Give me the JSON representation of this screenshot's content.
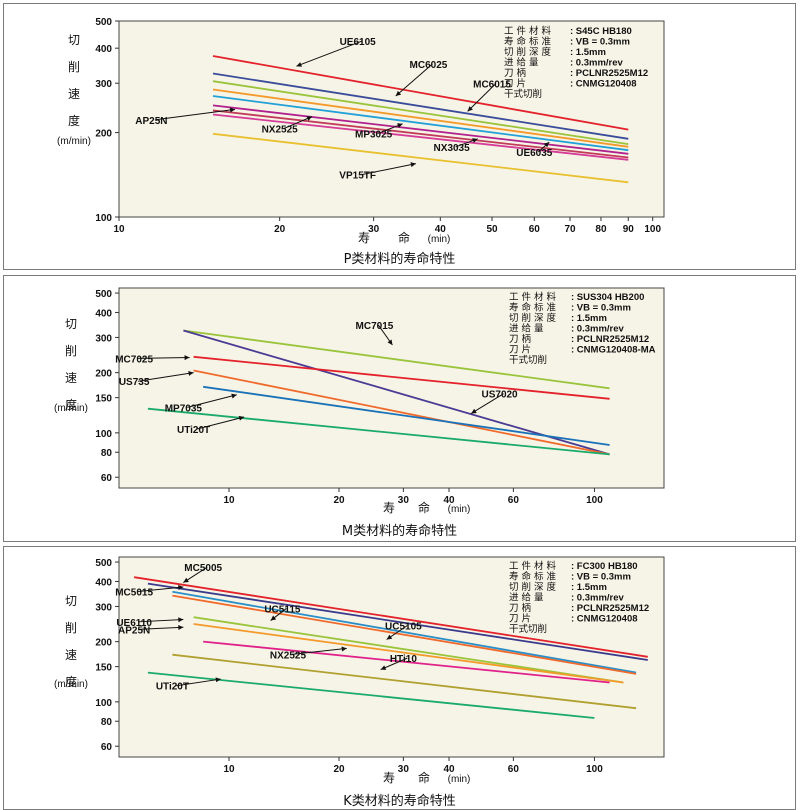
{
  "chart_data": [
    {
      "type": "line",
      "title": "P类材料的寿命特性",
      "xscale": "log",
      "yscale": "log",
      "xlim": [
        10,
        105
      ],
      "ylim": [
        100,
        500
      ],
      "xticks": [
        10,
        20,
        30,
        40,
        50,
        60,
        70,
        80,
        90,
        100
      ],
      "yticks": [
        100,
        200,
        300,
        400,
        500
      ],
      "ylabel_chars": [
        "切",
        "削",
        "速",
        "度"
      ],
      "ylabel_unit": "(m/min)",
      "xlabel_chars": [
        "寿",
        "命"
      ],
      "xlabel_unit": "(min)",
      "conditions": [
        {
          "label": "工 件 材 料",
          "value": "S45C   HB180"
        },
        {
          "label": "寿 命 标 准",
          "value": "VB = 0.3mm"
        },
        {
          "label": "切 削 深 度",
          "value": "1.5mm"
        },
        {
          "label": "进    给    量",
          "value": "0.3mm/rev"
        },
        {
          "label": "刀            柄",
          "value": "PCLNR2525M12"
        },
        {
          "label": "刀            片",
          "value": "CNMG120408"
        },
        {
          "label": "干式切削",
          "value": ""
        }
      ],
      "series": [
        {
          "name": "UE6105",
          "color": "#e3222b",
          "x": [
            15,
            90
          ],
          "y": [
            375,
            205
          ]
        },
        {
          "name": "MC6025",
          "color": "#3a4c9a",
          "x": [
            15,
            90
          ],
          "y": [
            325,
            190
          ]
        },
        {
          "name": "MC6015",
          "color": "#9ac43c",
          "x": [
            15,
            90
          ],
          "y": [
            305,
            182
          ]
        },
        {
          "name": "AP25N",
          "color": "#f39a2b",
          "x": [
            15,
            90
          ],
          "y": [
            285,
            178
          ]
        },
        {
          "name": "MP3025",
          "color": "#22a0d8",
          "x": [
            15,
            90
          ],
          "y": [
            270,
            173
          ]
        },
        {
          "name": "NX2525",
          "color": "#b0218e",
          "x": [
            15,
            90
          ],
          "y": [
            250,
            168
          ]
        },
        {
          "name": "NX3035",
          "color": "#c23a5a",
          "x": [
            15,
            90
          ],
          "y": [
            240,
            163
          ]
        },
        {
          "name": "UE6035",
          "color": "#d63d98",
          "x": [
            15,
            90
          ],
          "y": [
            232,
            160
          ]
        },
        {
          "name": "VP15TF",
          "color": "#e8c030",
          "x": [
            15,
            90
          ],
          "y": [
            198,
            133
          ]
        }
      ],
      "labels": [
        {
          "name": "UE6105",
          "text_at": [
            28,
            410
          ],
          "arrow_to": [
            21.5,
            345
          ]
        },
        {
          "name": "MC6025",
          "text_at": [
            38,
            340
          ],
          "arrow_to": [
            33,
            270
          ]
        },
        {
          "name": "MC6015",
          "text_at": [
            50,
            290
          ],
          "arrow_to": [
            45,
            238
          ]
        },
        {
          "name": "AP25N",
          "text_at": [
            11.5,
            215
          ],
          "arrow_to": [
            16.5,
            242
          ]
        },
        {
          "name": "NX2525",
          "text_at": [
            20,
            200
          ],
          "arrow_to": [
            23,
            228
          ]
        },
        {
          "name": "MP3025",
          "text_at": [
            30,
            192
          ],
          "arrow_to": [
            34,
            215
          ]
        },
        {
          "name": "NX3035",
          "text_at": [
            42,
            172
          ],
          "arrow_to": [
            47,
            190
          ]
        },
        {
          "name": "UE6035",
          "text_at": [
            60,
            165
          ],
          "arrow_to": [
            64,
            185
          ]
        },
        {
          "name": "VP15TF",
          "text_at": [
            28,
            137
          ],
          "arrow_to": [
            36,
            155
          ]
        }
      ]
    },
    {
      "type": "line",
      "title": "M类材料的寿命特性",
      "xscale": "log",
      "yscale": "log",
      "xlim": [
        5,
        155
      ],
      "ylim": [
        53,
        530
      ],
      "xticks": [
        10,
        20,
        30,
        40,
        60,
        100
      ],
      "yticks": [
        60,
        80,
        100,
        150,
        200,
        300,
        400,
        500
      ],
      "ylabel_chars": [
        "切",
        "削",
        "速",
        "度"
      ],
      "ylabel_unit": "(m/min)",
      "xlabel_chars": [
        "寿",
        "命"
      ],
      "xlabel_unit": "(min)",
      "conditions": [
        {
          "label": "工 件 材 料",
          "value": "SUS304   HB200"
        },
        {
          "label": "寿 命 标 准",
          "value": "VB = 0.3mm"
        },
        {
          "label": "切 削 深 度",
          "value": "1.5mm"
        },
        {
          "label": "进    给    量",
          "value": "0.3mm/rev"
        },
        {
          "label": "刀            柄",
          "value": "PCLNR2525M12"
        },
        {
          "label": "刀            片",
          "value": "CNMG120408-MA"
        },
        {
          "label": "干式切削",
          "value": ""
        }
      ],
      "series": [
        {
          "name": "MC7015",
          "color": "#9ac43c",
          "x": [
            7.5,
            110
          ],
          "y": [
            325,
            167
          ]
        },
        {
          "name": "US7020",
          "color": "#4a3c94",
          "x": [
            7.5,
            110
          ],
          "y": [
            325,
            78
          ]
        },
        {
          "name": "MC7025",
          "color": "#e3222b",
          "x": [
            8,
            110
          ],
          "y": [
            240,
            148
          ]
        },
        {
          "name": "US735",
          "color": "#f06a2c",
          "x": [
            8,
            110
          ],
          "y": [
            205,
            78
          ]
        },
        {
          "name": "MP7035",
          "color": "#1a72b8",
          "x": [
            8.5,
            110
          ],
          "y": [
            170,
            87
          ]
        },
        {
          "name": "UTi20T",
          "color": "#1aaa6a",
          "x": [
            6,
            110
          ],
          "y": [
            132,
            78
          ]
        }
      ],
      "labels": [
        {
          "name": "MC7015",
          "text_at": [
            25,
            330
          ],
          "arrow_to": [
            28,
            275
          ]
        },
        {
          "name": "US7020",
          "text_at": [
            55,
            150
          ],
          "arrow_to": [
            46,
            125
          ]
        },
        {
          "name": "MC7025",
          "text_at": [
            5.5,
            225
          ],
          "arrow_to": [
            7.8,
            238
          ]
        },
        {
          "name": "US735",
          "text_at": [
            5.5,
            173
          ],
          "arrow_to": [
            8,
            200
          ]
        },
        {
          "name": "MP7035",
          "text_at": [
            7.5,
            128
          ],
          "arrow_to": [
            10.5,
            155
          ]
        },
        {
          "name": "UTi20T",
          "text_at": [
            8,
            100
          ],
          "arrow_to": [
            11,
            120
          ]
        }
      ]
    },
    {
      "type": "line",
      "title": "K类材料的寿命特性",
      "xscale": "log",
      "yscale": "log",
      "xlim": [
        5,
        155
      ],
      "ylim": [
        53,
        530
      ],
      "xticks": [
        10,
        20,
        30,
        40,
        60,
        100
      ],
      "yticks": [
        60,
        80,
        100,
        150,
        200,
        300,
        400,
        500
      ],
      "ylabel_chars": [
        "切",
        "削",
        "速",
        "度"
      ],
      "ylabel_unit": "(m/min)",
      "xlabel_chars": [
        "寿",
        "命"
      ],
      "xlabel_unit": "(min)",
      "conditions": [
        {
          "label": "工 件 材 料",
          "value": "FC300   HB180"
        },
        {
          "label": "寿 命 标 准",
          "value": "VB = 0.3mm"
        },
        {
          "label": "切 削 深 度",
          "value": "1.5mm"
        },
        {
          "label": "进    给    量",
          "value": "0.3mm/rev"
        },
        {
          "label": "刀            柄",
          "value": "PCLNR2525M12"
        },
        {
          "label": "刀            片",
          "value": "CNMG120408"
        },
        {
          "label": "干式切削",
          "value": ""
        }
      ],
      "series": [
        {
          "name": "MC5005",
          "color": "#e3222b",
          "x": [
            5.5,
            140
          ],
          "y": [
            420,
            168
          ]
        },
        {
          "name": "MC5015",
          "color": "#3a3a8c",
          "x": [
            6,
            140
          ],
          "y": [
            390,
            162
          ]
        },
        {
          "name": "UC5115",
          "color": "#2a8fc8",
          "x": [
            7,
            130
          ],
          "y": [
            355,
            140
          ]
        },
        {
          "name": "UC5105",
          "color": "#f06a2c",
          "x": [
            7,
            130
          ],
          "y": [
            340,
            138
          ]
        },
        {
          "name": "UE6110",
          "color": "#9ac43c",
          "x": [
            8,
            120
          ],
          "y": [
            265,
            125
          ]
        },
        {
          "name": "AP25N",
          "color": "#f39a2b",
          "x": [
            8,
            120
          ],
          "y": [
            245,
            125
          ]
        },
        {
          "name": "NX2525",
          "color": "#e0218a",
          "x": [
            8.5,
            110
          ],
          "y": [
            200,
            125
          ]
        },
        {
          "name": "HTi10",
          "color": "#b0a030",
          "x": [
            7,
            130
          ],
          "y": [
            172,
            93
          ]
        },
        {
          "name": "UTi20T",
          "color": "#1aaa6a",
          "x": [
            6,
            100
          ],
          "y": [
            140,
            83
          ]
        }
      ],
      "labels": [
        {
          "name": "MC5005",
          "text_at": [
            8.5,
            450
          ],
          "arrow_to": [
            7.5,
            395
          ]
        },
        {
          "name": "MC5015",
          "text_at": [
            5.5,
            340
          ],
          "arrow_to": [
            7.5,
            375
          ]
        },
        {
          "name": "UC5115",
          "text_at": [
            14,
            280
          ],
          "arrow_to": [
            13,
            255
          ]
        },
        {
          "name": "UE6110",
          "text_at": [
            5.5,
            240
          ],
          "arrow_to": [
            7.5,
            258
          ]
        },
        {
          "name": "AP25N",
          "text_at": [
            5.5,
            220
          ],
          "arrow_to": [
            7.5,
            236
          ]
        },
        {
          "name": "UC5105",
          "text_at": [
            30,
            230
          ],
          "arrow_to": [
            27,
            205
          ]
        },
        {
          "name": "NX2525",
          "text_at": [
            14.5,
            165
          ],
          "arrow_to": [
            21,
            185
          ]
        },
        {
          "name": "HTi10",
          "text_at": [
            30,
            158
          ],
          "arrow_to": [
            26,
            145
          ]
        },
        {
          "name": "UTi20T",
          "text_at": [
            7,
            115
          ],
          "arrow_to": [
            9.5,
            130
          ]
        }
      ]
    }
  ]
}
